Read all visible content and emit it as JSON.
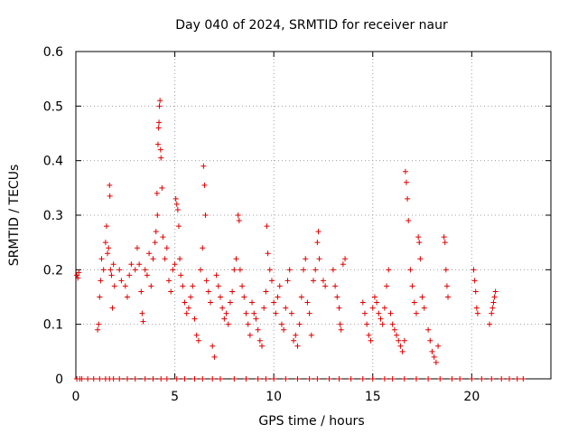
{
  "chart_data": {
    "type": "scatter",
    "title": "Day 040 of 2024, SRMTID for receiver naur",
    "xlabel": "GPS time / hours",
    "ylabel": "SRMTID / TECUs",
    "xlim": [
      0,
      24
    ],
    "ylim": [
      0,
      0.6
    ],
    "xticks": [
      0,
      5,
      10,
      15,
      20
    ],
    "xtick_labels": [
      "0",
      "5",
      "10",
      "15",
      "20"
    ],
    "yticks": [
      0,
      0.1,
      0.2,
      0.3,
      0.4,
      0.5,
      0.6
    ],
    "ytick_labels": [
      "0",
      "0.1",
      "0.2",
      "0.3",
      "0.4",
      "0.5",
      "0.6"
    ],
    "grid": true,
    "marker": "+",
    "color": "#e00000",
    "points": [
      [
        0.05,
        0.19
      ],
      [
        0.1,
        0.185
      ],
      [
        0.15,
        0.195
      ],
      [
        1.1,
        0.09
      ],
      [
        1.15,
        0.1
      ],
      [
        1.2,
        0.15
      ],
      [
        1.25,
        0.18
      ],
      [
        1.3,
        0.22
      ],
      [
        1.4,
        0.2
      ],
      [
        1.5,
        0.25
      ],
      [
        1.55,
        0.28
      ],
      [
        1.6,
        0.23
      ],
      [
        1.65,
        0.24
      ],
      [
        1.7,
        0.355
      ],
      [
        1.72,
        0.335
      ],
      [
        1.75,
        0.2
      ],
      [
        1.8,
        0.19
      ],
      [
        1.85,
        0.13
      ],
      [
        1.9,
        0.21
      ],
      [
        1.95,
        0.17
      ],
      [
        2.2,
        0.2
      ],
      [
        2.3,
        0.18
      ],
      [
        2.5,
        0.17
      ],
      [
        2.6,
        0.15
      ],
      [
        2.7,
        0.19
      ],
      [
        2.8,
        0.21
      ],
      [
        3.0,
        0.2
      ],
      [
        3.1,
        0.24
      ],
      [
        3.2,
        0.21
      ],
      [
        3.3,
        0.16
      ],
      [
        3.35,
        0.12
      ],
      [
        3.4,
        0.105
      ],
      [
        3.5,
        0.2
      ],
      [
        3.6,
        0.19
      ],
      [
        3.7,
        0.23
      ],
      [
        3.8,
        0.17
      ],
      [
        3.9,
        0.22
      ],
      [
        4.0,
        0.25
      ],
      [
        4.05,
        0.27
      ],
      [
        4.1,
        0.34
      ],
      [
        4.12,
        0.3
      ],
      [
        4.15,
        0.43
      ],
      [
        4.18,
        0.46
      ],
      [
        4.2,
        0.47
      ],
      [
        4.22,
        0.5
      ],
      [
        4.25,
        0.51
      ],
      [
        4.28,
        0.42
      ],
      [
        4.3,
        0.405
      ],
      [
        4.35,
        0.35
      ],
      [
        4.4,
        0.26
      ],
      [
        4.5,
        0.22
      ],
      [
        4.6,
        0.24
      ],
      [
        4.7,
        0.18
      ],
      [
        4.8,
        0.16
      ],
      [
        4.9,
        0.2
      ],
      [
        5.0,
        0.21
      ],
      [
        5.05,
        0.33
      ],
      [
        5.1,
        0.32
      ],
      [
        5.15,
        0.31
      ],
      [
        5.2,
        0.28
      ],
      [
        5.25,
        0.22
      ],
      [
        5.3,
        0.19
      ],
      [
        5.4,
        0.17
      ],
      [
        5.5,
        0.14
      ],
      [
        5.6,
        0.12
      ],
      [
        5.7,
        0.13
      ],
      [
        5.8,
        0.15
      ],
      [
        5.9,
        0.17
      ],
      [
        6.0,
        0.11
      ],
      [
        6.1,
        0.08
      ],
      [
        6.2,
        0.07
      ],
      [
        6.3,
        0.2
      ],
      [
        6.4,
        0.24
      ],
      [
        6.45,
        0.39
      ],
      [
        6.5,
        0.355
      ],
      [
        6.55,
        0.3
      ],
      [
        6.6,
        0.18
      ],
      [
        6.7,
        0.16
      ],
      [
        6.8,
        0.14
      ],
      [
        6.9,
        0.06
      ],
      [
        7.0,
        0.04
      ],
      [
        7.1,
        0.19
      ],
      [
        7.2,
        0.17
      ],
      [
        7.3,
        0.15
      ],
      [
        7.4,
        0.13
      ],
      [
        7.5,
        0.11
      ],
      [
        7.6,
        0.12
      ],
      [
        7.7,
        0.1
      ],
      [
        7.8,
        0.14
      ],
      [
        7.9,
        0.16
      ],
      [
        8.0,
        0.2
      ],
      [
        8.1,
        0.22
      ],
      [
        8.2,
        0.3
      ],
      [
        8.25,
        0.29
      ],
      [
        8.3,
        0.2
      ],
      [
        8.4,
        0.17
      ],
      [
        8.5,
        0.15
      ],
      [
        8.6,
        0.12
      ],
      [
        8.7,
        0.1
      ],
      [
        8.8,
        0.08
      ],
      [
        8.9,
        0.14
      ],
      [
        9.0,
        0.12
      ],
      [
        9.1,
        0.11
      ],
      [
        9.2,
        0.09
      ],
      [
        9.3,
        0.07
      ],
      [
        9.4,
        0.06
      ],
      [
        9.5,
        0.13
      ],
      [
        9.6,
        0.16
      ],
      [
        9.65,
        0.28
      ],
      [
        9.7,
        0.23
      ],
      [
        9.8,
        0.2
      ],
      [
        9.9,
        0.18
      ],
      [
        10.0,
        0.14
      ],
      [
        10.1,
        0.12
      ],
      [
        10.2,
        0.15
      ],
      [
        10.3,
        0.17
      ],
      [
        10.4,
        0.1
      ],
      [
        10.5,
        0.09
      ],
      [
        10.6,
        0.13
      ],
      [
        10.7,
        0.18
      ],
      [
        10.8,
        0.2
      ],
      [
        10.9,
        0.12
      ],
      [
        11.0,
        0.07
      ],
      [
        11.1,
        0.08
      ],
      [
        11.2,
        0.06
      ],
      [
        11.3,
        0.1
      ],
      [
        11.4,
        0.15
      ],
      [
        11.5,
        0.2
      ],
      [
        11.6,
        0.22
      ],
      [
        11.7,
        0.14
      ],
      [
        11.8,
        0.12
      ],
      [
        11.9,
        0.08
      ],
      [
        12.0,
        0.18
      ],
      [
        12.1,
        0.2
      ],
      [
        12.2,
        0.25
      ],
      [
        12.25,
        0.27
      ],
      [
        12.3,
        0.22
      ],
      [
        12.5,
        0.18
      ],
      [
        12.6,
        0.17
      ],
      [
        13.0,
        0.2
      ],
      [
        13.1,
        0.17
      ],
      [
        13.2,
        0.15
      ],
      [
        13.3,
        0.13
      ],
      [
        13.35,
        0.1
      ],
      [
        13.4,
        0.09
      ],
      [
        13.5,
        0.21
      ],
      [
        13.6,
        0.22
      ],
      [
        14.5,
        0.14
      ],
      [
        14.6,
        0.12
      ],
      [
        14.7,
        0.1
      ],
      [
        14.8,
        0.08
      ],
      [
        14.9,
        0.07
      ],
      [
        15.0,
        0.13
      ],
      [
        15.1,
        0.15
      ],
      [
        15.2,
        0.14
      ],
      [
        15.3,
        0.12
      ],
      [
        15.4,
        0.11
      ],
      [
        15.5,
        0.1
      ],
      [
        15.6,
        0.13
      ],
      [
        15.7,
        0.17
      ],
      [
        15.8,
        0.2
      ],
      [
        15.9,
        0.12
      ],
      [
        16.0,
        0.1
      ],
      [
        16.1,
        0.09
      ],
      [
        16.2,
        0.08
      ],
      [
        16.3,
        0.07
      ],
      [
        16.4,
        0.06
      ],
      [
        16.5,
        0.05
      ],
      [
        16.6,
        0.07
      ],
      [
        16.65,
        0.38
      ],
      [
        16.7,
        0.36
      ],
      [
        16.75,
        0.33
      ],
      [
        16.8,
        0.29
      ],
      [
        16.9,
        0.2
      ],
      [
        17.0,
        0.17
      ],
      [
        17.1,
        0.14
      ],
      [
        17.2,
        0.12
      ],
      [
        17.3,
        0.26
      ],
      [
        17.35,
        0.25
      ],
      [
        17.4,
        0.22
      ],
      [
        17.5,
        0.15
      ],
      [
        17.6,
        0.13
      ],
      [
        17.8,
        0.09
      ],
      [
        17.9,
        0.07
      ],
      [
        18.0,
        0.05
      ],
      [
        18.1,
        0.04
      ],
      [
        18.2,
        0.03
      ],
      [
        18.3,
        0.06
      ],
      [
        18.6,
        0.26
      ],
      [
        18.65,
        0.25
      ],
      [
        18.7,
        0.2
      ],
      [
        18.75,
        0.17
      ],
      [
        18.8,
        0.15
      ],
      [
        20.1,
        0.2
      ],
      [
        20.15,
        0.18
      ],
      [
        20.2,
        0.16
      ],
      [
        20.25,
        0.13
      ],
      [
        20.3,
        0.12
      ],
      [
        20.9,
        0.1
      ],
      [
        21.0,
        0.12
      ],
      [
        21.05,
        0.13
      ],
      [
        21.1,
        0.14
      ],
      [
        21.15,
        0.15
      ],
      [
        21.2,
        0.16
      ],
      [
        0.05,
        0
      ],
      [
        0.2,
        0
      ],
      [
        0.3,
        0
      ],
      [
        0.6,
        0
      ],
      [
        0.9,
        0
      ],
      [
        1.2,
        0
      ],
      [
        1.5,
        0
      ],
      [
        1.7,
        0
      ],
      [
        1.9,
        0
      ],
      [
        2.2,
        0
      ],
      [
        2.6,
        0
      ],
      [
        3.0,
        0
      ],
      [
        3.5,
        0
      ],
      [
        3.9,
        0
      ],
      [
        4.3,
        0
      ],
      [
        4.6,
        0
      ],
      [
        5.1,
        0
      ],
      [
        5.5,
        0
      ],
      [
        6.0,
        0
      ],
      [
        6.4,
        0
      ],
      [
        6.9,
        0
      ],
      [
        7.3,
        0
      ],
      [
        8.0,
        0
      ],
      [
        8.6,
        0
      ],
      [
        9.2,
        0
      ],
      [
        9.6,
        0
      ],
      [
        10.0,
        0
      ],
      [
        10.6,
        0
      ],
      [
        11.2,
        0
      ],
      [
        11.8,
        0
      ],
      [
        12.2,
        0
      ],
      [
        12.8,
        0
      ],
      [
        13.3,
        0
      ],
      [
        13.9,
        0
      ],
      [
        14.5,
        0
      ],
      [
        15.0,
        0
      ],
      [
        15.6,
        0
      ],
      [
        16.0,
        0
      ],
      [
        16.6,
        0
      ],
      [
        17.2,
        0
      ],
      [
        17.8,
        0
      ],
      [
        18.4,
        0
      ],
      [
        19.0,
        0
      ],
      [
        19.4,
        0
      ],
      [
        20.0,
        0
      ],
      [
        20.5,
        0
      ],
      [
        21.0,
        0
      ],
      [
        21.5,
        0
      ],
      [
        21.9,
        0
      ],
      [
        22.3,
        0
      ],
      [
        22.6,
        0
      ]
    ]
  }
}
